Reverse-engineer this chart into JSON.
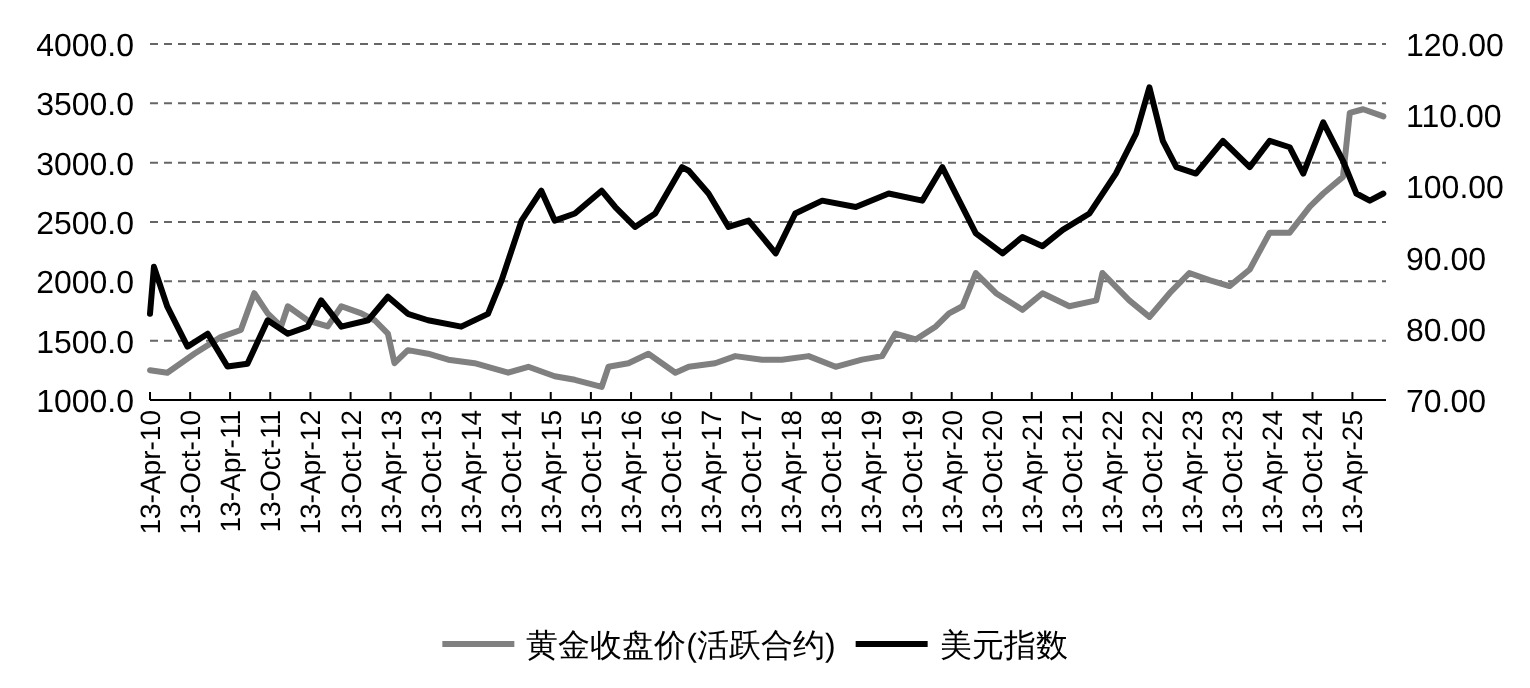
{
  "chart_data": {
    "type": "line",
    "legend": "bottom",
    "grid": "y",
    "line_style": "solid",
    "marker": "none",
    "xlim": [
      "2010-04-13",
      "2025-09-13"
    ],
    "xticks": [
      {
        "value": "2010-04-13",
        "label": "13-Apr-10"
      },
      {
        "value": "2010-10-13",
        "label": "13-Oct-10"
      },
      {
        "value": "2011-04-13",
        "label": "13-Apr-11"
      },
      {
        "value": "2011-10-13",
        "label": "13-Oct-11"
      },
      {
        "value": "2012-04-13",
        "label": "13-Apr-12"
      },
      {
        "value": "2012-10-13",
        "label": "13-Oct-12"
      },
      {
        "value": "2013-04-13",
        "label": "13-Apr-13"
      },
      {
        "value": "2013-10-13",
        "label": "13-Oct-13"
      },
      {
        "value": "2014-04-13",
        "label": "13-Apr-14"
      },
      {
        "value": "2014-10-13",
        "label": "13-Oct-14"
      },
      {
        "value": "2015-04-13",
        "label": "13-Apr-15"
      },
      {
        "value": "2015-10-13",
        "label": "13-Oct-15"
      },
      {
        "value": "2016-04-13",
        "label": "13-Apr-16"
      },
      {
        "value": "2016-10-13",
        "label": "13-Oct-16"
      },
      {
        "value": "2017-04-13",
        "label": "13-Apr-17"
      },
      {
        "value": "2017-10-13",
        "label": "13-Oct-17"
      },
      {
        "value": "2018-04-13",
        "label": "13-Apr-18"
      },
      {
        "value": "2018-10-13",
        "label": "13-Oct-18"
      },
      {
        "value": "2019-04-13",
        "label": "13-Apr-19"
      },
      {
        "value": "2019-10-13",
        "label": "13-Oct-19"
      },
      {
        "value": "2020-04-13",
        "label": "13-Apr-20"
      },
      {
        "value": "2020-10-13",
        "label": "13-Oct-20"
      },
      {
        "value": "2021-04-13",
        "label": "13-Apr-21"
      },
      {
        "value": "2021-10-13",
        "label": "13-Oct-21"
      },
      {
        "value": "2022-04-13",
        "label": "13-Apr-22"
      },
      {
        "value": "2022-10-13",
        "label": "13-Oct-22"
      },
      {
        "value": "2023-04-13",
        "label": "13-Apr-23"
      },
      {
        "value": "2023-10-13",
        "label": "13-Oct-23"
      },
      {
        "value": "2024-04-13",
        "label": "13-Apr-24"
      },
      {
        "value": "2024-10-13",
        "label": "13-Oct-24"
      },
      {
        "value": "2025-04-13",
        "label": "13-Apr-25"
      }
    ],
    "ylim": [
      1000,
      4000
    ],
    "yticks": [
      {
        "value": 1000,
        "label": "1000.0"
      },
      {
        "value": 1500,
        "label": "1500.0"
      },
      {
        "value": 2000,
        "label": "2000.0"
      },
      {
        "value": 2500,
        "label": "2500.0"
      },
      {
        "value": 3000,
        "label": "3000.0"
      },
      {
        "value": 3500,
        "label": "3500.0"
      },
      {
        "value": 4000,
        "label": "4000.0"
      }
    ],
    "y2lim": [
      70,
      120
    ],
    "y2ticks": [
      {
        "value": 70,
        "label": "70.00"
      },
      {
        "value": 80,
        "label": "80.00"
      },
      {
        "value": 90,
        "label": "90.00"
      },
      {
        "value": 100,
        "label": "100.00"
      },
      {
        "value": 110,
        "label": "110.00"
      },
      {
        "value": 120,
        "label": "120.00"
      }
    ],
    "series": [
      {
        "name": "黄金收盘价(活跃合约)",
        "color": "#808080",
        "x": [
          "2010-04-13",
          "2010-07",
          "2010-11",
          "2011-03",
          "2011-06",
          "2011-08",
          "2011-10",
          "2011-12",
          "2012-01",
          "2012-04",
          "2012-07",
          "2012-09",
          "2012-12",
          "2013-02",
          "2013-04",
          "2013-05",
          "2013-07",
          "2013-10",
          "2014-01",
          "2014-05",
          "2014-10",
          "2015-01",
          "2015-05",
          "2015-08",
          "2015-12",
          "2016-01",
          "2016-04",
          "2016-07",
          "2016-11",
          "2017-01",
          "2017-05",
          "2017-08",
          "2017-12",
          "2018-03",
          "2018-07",
          "2018-11",
          "2019-03",
          "2019-06",
          "2019-08",
          "2019-11",
          "2020-02",
          "2020-04",
          "2020-06",
          "2020-08",
          "2020-11",
          "2021-03",
          "2021-06",
          "2021-10",
          "2022-02",
          "2022-03",
          "2022-07",
          "2022-10",
          "2023-01",
          "2023-04",
          "2023-07",
          "2023-10",
          "2024-01",
          "2024-04",
          "2024-07",
          "2024-10",
          "2024-12",
          "2025-03",
          "2025-04",
          "2025-06",
          "2025-09"
        ],
        "values": [
          1250,
          1230,
          1390,
          1530,
          1590,
          1900,
          1730,
          1620,
          1790,
          1670,
          1620,
          1790,
          1730,
          1670,
          1560,
          1310,
          1420,
          1390,
          1340,
          1310,
          1230,
          1280,
          1200,
          1170,
          1110,
          1280,
          1310,
          1390,
          1230,
          1280,
          1310,
          1370,
          1340,
          1340,
          1370,
          1280,
          1340,
          1370,
          1560,
          1510,
          1620,
          1730,
          1790,
          2070,
          1900,
          1760,
          1900,
          1790,
          1840,
          2070,
          1840,
          1700,
          1900,
          2070,
          2010,
          1960,
          2100,
          2410,
          2410,
          2630,
          2740,
          2880,
          3420,
          3450,
          3390
        ]
      },
      {
        "name": "美元指数",
        "color": "#000000",
        "axis": "y2",
        "x": [
          "2010-04-13",
          "2010-05",
          "2010-07",
          "2010-10",
          "2011-01",
          "2011-04",
          "2011-07",
          "2011-10",
          "2012-01",
          "2012-04",
          "2012-06",
          "2012-09",
          "2013-01",
          "2013-04",
          "2013-07",
          "2013-10",
          "2014-03",
          "2014-07",
          "2014-09",
          "2014-12",
          "2015-03",
          "2015-05",
          "2015-08",
          "2015-12",
          "2016-02",
          "2016-05",
          "2016-08",
          "2016-12",
          "2017-01",
          "2017-04",
          "2017-07",
          "2017-10",
          "2018-02",
          "2018-05",
          "2018-09",
          "2019-02",
          "2019-07",
          "2019-12",
          "2020-03",
          "2020-05",
          "2020-08",
          "2020-12",
          "2021-03",
          "2021-06",
          "2021-09",
          "2022-01",
          "2022-05",
          "2022-08",
          "2022-10",
          "2022-12",
          "2023-02",
          "2023-05",
          "2023-09",
          "2024-01",
          "2024-04",
          "2024-07",
          "2024-09",
          "2024-12",
          "2025-03",
          "2025-05",
          "2025-07",
          "2025-09"
        ],
        "values": [
          82.1,
          88.7,
          83.1,
          77.5,
          79.3,
          74.7,
          75.1,
          81.2,
          79.3,
          80.3,
          84.0,
          80.3,
          81.2,
          84.5,
          82.1,
          81.2,
          80.3,
          82.1,
          86.8,
          95.2,
          99.4,
          95.2,
          96.2,
          99.4,
          97.1,
          94.3,
          96.2,
          102.7,
          102.2,
          99.0,
          94.3,
          95.2,
          90.6,
          96.2,
          98.0,
          97.1,
          99.0,
          98.0,
          102.7,
          99.0,
          93.4,
          90.6,
          92.9,
          91.6,
          93.9,
          96.2,
          101.8,
          107.4,
          113.9,
          106.4,
          102.7,
          101.8,
          106.4,
          102.7,
          106.4,
          105.5,
          101.8,
          109.0,
          103.6,
          99.0,
          98.0,
          99.0
        ]
      }
    ]
  }
}
